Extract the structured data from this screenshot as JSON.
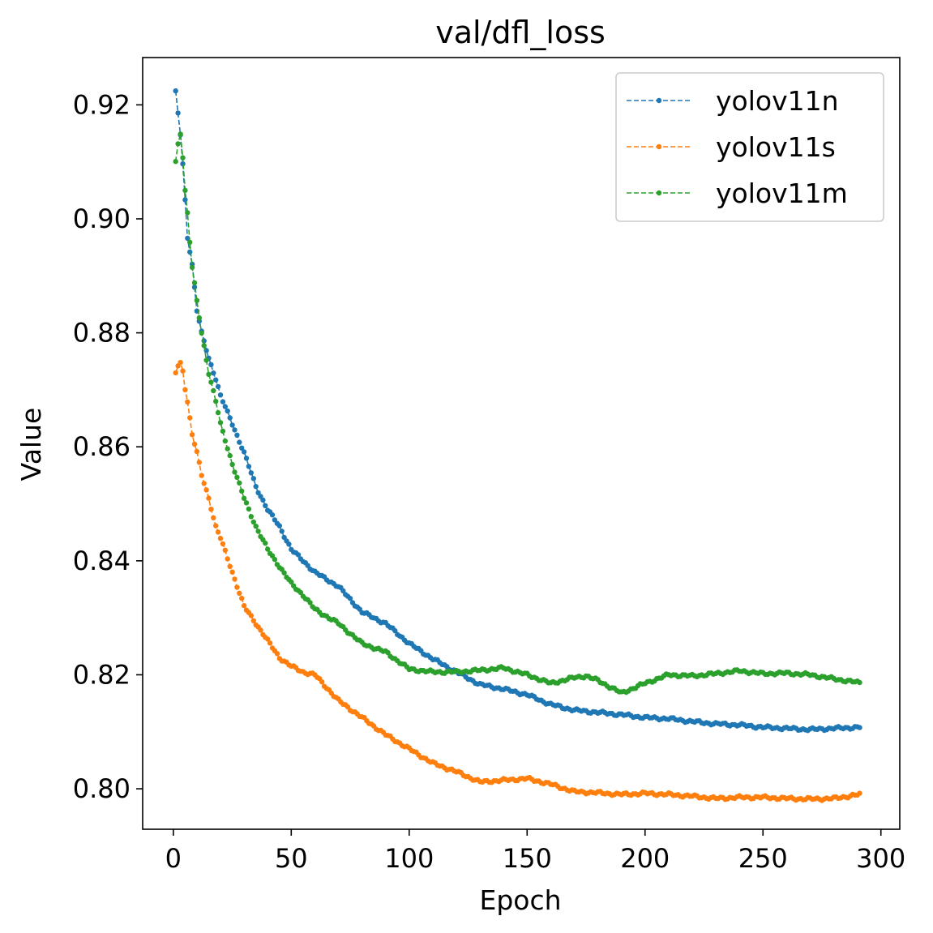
{
  "chart_data": {
    "type": "line",
    "title": "val/dfl_loss",
    "xlabel": "Epoch",
    "ylabel": "Value",
    "xlim": [
      -13,
      308
    ],
    "ylim": [
      0.7929,
      0.9283
    ],
    "x_ticks": [
      0,
      50,
      100,
      150,
      200,
      250,
      300
    ],
    "x_tick_labels": [
      "0",
      "50",
      "100",
      "150",
      "200",
      "250",
      "300"
    ],
    "y_ticks": [
      0.8,
      0.82,
      0.84,
      0.86,
      0.88,
      0.9,
      0.92
    ],
    "y_tick_labels": [
      "0.80",
      "0.82",
      "0.84",
      "0.86",
      "0.88",
      "0.90",
      "0.92"
    ],
    "grid": false,
    "legend_position": "top-right",
    "x_range": [
      1,
      291
    ],
    "series": [
      {
        "name": "yolov11n",
        "color": "#1f77b4",
        "keypoints": [
          [
            1,
            0.9222
          ],
          [
            2,
            0.9185
          ],
          [
            3,
            0.9148
          ],
          [
            4,
            0.9095
          ],
          [
            5,
            0.9032
          ],
          [
            6,
            0.8968
          ],
          [
            8,
            0.892
          ],
          [
            10,
            0.884
          ],
          [
            12,
            0.88
          ],
          [
            15,
            0.8755
          ],
          [
            18,
            0.872
          ],
          [
            20,
            0.869
          ],
          [
            25,
            0.864
          ],
          [
            30,
            0.859
          ],
          [
            35,
            0.853
          ],
          [
            40,
            0.849
          ],
          [
            45,
            0.846
          ],
          [
            50,
            0.842
          ],
          [
            55,
            0.84
          ],
          [
            60,
            0.838
          ],
          [
            70,
            0.8355
          ],
          [
            80,
            0.831
          ],
          [
            90,
            0.829
          ],
          [
            100,
            0.8255
          ],
          [
            110,
            0.8228
          ],
          [
            120,
            0.8205
          ],
          [
            130,
            0.8183
          ],
          [
            140,
            0.8175
          ],
          [
            150,
            0.8165
          ],
          [
            160,
            0.8148
          ],
          [
            170,
            0.8138
          ],
          [
            180,
            0.8134
          ],
          [
            190,
            0.813
          ],
          [
            200,
            0.8125
          ],
          [
            210,
            0.8123
          ],
          [
            220,
            0.8118
          ],
          [
            230,
            0.8114
          ],
          [
            240,
            0.8112
          ],
          [
            250,
            0.8108
          ],
          [
            260,
            0.8106
          ],
          [
            270,
            0.8104
          ],
          [
            280,
            0.8106
          ],
          [
            291,
            0.8108
          ]
        ]
      },
      {
        "name": "yolov11s",
        "color": "#ff7f0e",
        "keypoints": [
          [
            1,
            0.873
          ],
          [
            2,
            0.8742
          ],
          [
            3,
            0.8746
          ],
          [
            4,
            0.8733
          ],
          [
            5,
            0.8703
          ],
          [
            6,
            0.868
          ],
          [
            7,
            0.865
          ],
          [
            8,
            0.8622
          ],
          [
            10,
            0.859
          ],
          [
            12,
            0.855
          ],
          [
            15,
            0.851
          ],
          [
            18,
            0.846
          ],
          [
            20,
            0.844
          ],
          [
            25,
            0.838
          ],
          [
            30,
            0.832
          ],
          [
            35,
            0.829
          ],
          [
            40,
            0.826
          ],
          [
            45,
            0.823
          ],
          [
            50,
            0.8215
          ],
          [
            55,
            0.8205
          ],
          [
            60,
            0.82
          ],
          [
            70,
            0.8155
          ],
          [
            80,
            0.8125
          ],
          [
            90,
            0.8095
          ],
          [
            100,
            0.807
          ],
          [
            110,
            0.8045
          ],
          [
            120,
            0.803
          ],
          [
            130,
            0.8012
          ],
          [
            140,
            0.8015
          ],
          [
            150,
            0.8018
          ],
          [
            160,
            0.8008
          ],
          [
            170,
            0.7995
          ],
          [
            180,
            0.7993
          ],
          [
            190,
            0.799
          ],
          [
            200,
            0.7992
          ],
          [
            210,
            0.799
          ],
          [
            220,
            0.7987
          ],
          [
            230,
            0.7983
          ],
          [
            240,
            0.7985
          ],
          [
            250,
            0.7985
          ],
          [
            260,
            0.7983
          ],
          [
            270,
            0.7982
          ],
          [
            280,
            0.7983
          ],
          [
            291,
            0.799
          ]
        ]
      },
      {
        "name": "yolov11m",
        "color": "#2ca02c",
        "keypoints": [
          [
            1,
            0.91
          ],
          [
            2,
            0.913
          ],
          [
            3,
            0.915
          ],
          [
            4,
            0.911
          ],
          [
            5,
            0.905
          ],
          [
            6,
            0.901
          ],
          [
            7,
            0.896
          ],
          [
            8,
            0.8915
          ],
          [
            10,
            0.8855
          ],
          [
            12,
            0.88
          ],
          [
            15,
            0.873
          ],
          [
            18,
            0.868
          ],
          [
            20,
            0.864
          ],
          [
            25,
            0.857
          ],
          [
            30,
            0.851
          ],
          [
            35,
            0.846
          ],
          [
            40,
            0.842
          ],
          [
            45,
            0.839
          ],
          [
            50,
            0.836
          ],
          [
            55,
            0.834
          ],
          [
            60,
            0.8315
          ],
          [
            70,
            0.829
          ],
          [
            80,
            0.8255
          ],
          [
            90,
            0.824
          ],
          [
            100,
            0.821
          ],
          [
            110,
            0.8205
          ],
          [
            120,
            0.8205
          ],
          [
            130,
            0.8208
          ],
          [
            140,
            0.8212
          ],
          [
            150,
            0.82
          ],
          [
            160,
            0.8185
          ],
          [
            170,
            0.8195
          ],
          [
            175,
            0.8198
          ],
          [
            180,
            0.819
          ],
          [
            190,
            0.8168
          ],
          [
            200,
            0.8185
          ],
          [
            210,
            0.82
          ],
          [
            220,
            0.8198
          ],
          [
            230,
            0.8202
          ],
          [
            240,
            0.8207
          ],
          [
            250,
            0.8202
          ],
          [
            260,
            0.8203
          ],
          [
            270,
            0.82
          ],
          [
            280,
            0.8193
          ],
          [
            291,
            0.8186
          ]
        ]
      }
    ]
  }
}
